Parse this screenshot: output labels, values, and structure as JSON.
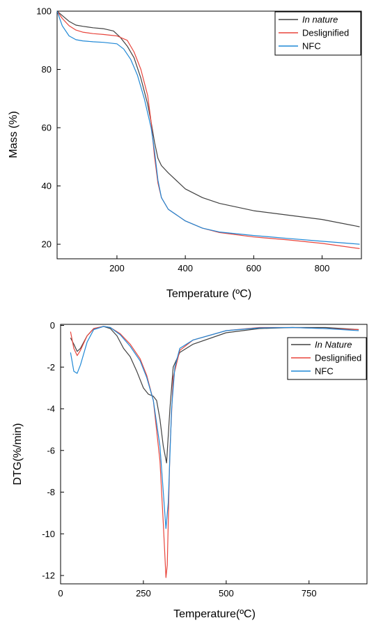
{
  "chart_data": [
    {
      "type": "line",
      "xlabel": "Temperature (ºC)",
      "ylabel": "Mass (%)",
      "xlim": [
        25,
        915
      ],
      "ylim": [
        15,
        100
      ],
      "xticks": [
        "200",
        "400",
        "600",
        "800"
      ],
      "xtick_values": [
        200,
        400,
        600,
        800
      ],
      "yticks": [
        "20",
        "40",
        "60",
        "80",
        "100"
      ],
      "ytick_values": [
        20,
        40,
        60,
        80,
        100
      ],
      "legend_position": "top-right",
      "series": [
        {
          "name": "In nature",
          "italic": true,
          "color": "#404040",
          "x": [
            25,
            40,
            60,
            80,
            100,
            130,
            160,
            190,
            210,
            230,
            250,
            270,
            290,
            300,
            310,
            320,
            330,
            350,
            400,
            450,
            500,
            600,
            700,
            800,
            910
          ],
          "y": [
            100,
            98.5,
            96.5,
            95.2,
            94.8,
            94.3,
            94,
            93.2,
            91,
            88,
            84,
            77,
            68,
            62,
            55,
            49.5,
            47,
            44.5,
            39,
            36,
            34,
            31.5,
            30,
            28.5,
            26
          ]
        },
        {
          "name": "Deslignified",
          "italic": false,
          "color": "#e8453c",
          "x": [
            25,
            40,
            60,
            80,
            100,
            130,
            160,
            200,
            230,
            250,
            270,
            290,
            300,
            310,
            320,
            330,
            350,
            400,
            450,
            500,
            600,
            700,
            800,
            910
          ],
          "y": [
            100,
            97.5,
            95,
            93.5,
            92.8,
            92.3,
            92,
            91.5,
            90,
            86,
            80,
            71,
            62,
            50,
            41,
            36,
            32,
            28,
            25.5,
            24,
            22.5,
            21.5,
            20.3,
            18.5
          ]
        },
        {
          "name": "NFC",
          "italic": false,
          "color": "#1f88d6",
          "x": [
            25,
            40,
            60,
            80,
            100,
            130,
            160,
            200,
            220,
            240,
            260,
            280,
            300,
            310,
            320,
            330,
            350,
            400,
            450,
            500,
            600,
            700,
            800,
            910
          ],
          "y": [
            100,
            95,
            91.5,
            90.2,
            89.8,
            89.5,
            89.3,
            88.8,
            87,
            83.5,
            78,
            70,
            60,
            52,
            42,
            36,
            32,
            28,
            25.5,
            24.2,
            23,
            22,
            21,
            20
          ]
        }
      ]
    },
    {
      "type": "line",
      "xlabel": "Temperature(ºC)",
      "ylabel": "DTG(%/min)",
      "xlim": [
        0,
        925
      ],
      "ylim": [
        -12.4,
        0.05
      ],
      "xticks": [
        "0",
        "250",
        "500",
        "750"
      ],
      "xtick_values": [
        0,
        250,
        500,
        750
      ],
      "yticks": [
        "0",
        "-2",
        "-4",
        "-6",
        "-8",
        "-10",
        "-12"
      ],
      "ytick_values": [
        0,
        -2,
        -4,
        -6,
        -8,
        -10,
        -12
      ],
      "legend_position": "top-right",
      "series": [
        {
          "name": "In Nature",
          "italic": true,
          "color": "#404040",
          "x": [
            30,
            40,
            50,
            60,
            80,
            100,
            130,
            150,
            170,
            190,
            210,
            230,
            250,
            265,
            280,
            290,
            300,
            310,
            320,
            330,
            340,
            360,
            400,
            500,
            600,
            700,
            800,
            900
          ],
          "y": [
            -0.6,
            -0.9,
            -1.25,
            -1.1,
            -0.5,
            -0.15,
            -0.05,
            -0.15,
            -0.5,
            -1.1,
            -1.5,
            -2.2,
            -3.0,
            -3.3,
            -3.4,
            -3.6,
            -4.5,
            -5.8,
            -6.6,
            -4.0,
            -2.0,
            -1.3,
            -0.9,
            -0.35,
            -0.15,
            -0.1,
            -0.1,
            -0.2
          ]
        },
        {
          "name": "Deslignified",
          "italic": false,
          "color": "#e8453c",
          "x": [
            30,
            40,
            50,
            60,
            80,
            100,
            130,
            150,
            180,
            210,
            240,
            260,
            280,
            300,
            310,
            318,
            322,
            330,
            340,
            360,
            400,
            500,
            600,
            700,
            800,
            900
          ],
          "y": [
            -0.3,
            -1.1,
            -1.45,
            -1.2,
            -0.5,
            -0.15,
            -0.05,
            -0.1,
            -0.4,
            -0.9,
            -1.6,
            -2.4,
            -3.6,
            -6.5,
            -9.5,
            -12.1,
            -11.5,
            -6.0,
            -2.5,
            -1.2,
            -0.7,
            -0.25,
            -0.1,
            -0.1,
            -0.15,
            -0.2
          ]
        },
        {
          "name": "NFC",
          "italic": false,
          "color": "#1f88d6",
          "x": [
            30,
            40,
            50,
            60,
            80,
            100,
            130,
            150,
            180,
            210,
            240,
            260,
            280,
            300,
            310,
            318,
            325,
            335,
            345,
            360,
            400,
            500,
            600,
            700,
            800,
            900
          ],
          "y": [
            -1.3,
            -2.2,
            -2.3,
            -1.9,
            -0.8,
            -0.2,
            -0.05,
            -0.1,
            -0.45,
            -1.0,
            -1.7,
            -2.5,
            -3.6,
            -5.8,
            -8.0,
            -9.75,
            -8.5,
            -4.0,
            -2.0,
            -1.1,
            -0.7,
            -0.25,
            -0.12,
            -0.1,
            -0.15,
            -0.25
          ]
        }
      ]
    }
  ]
}
